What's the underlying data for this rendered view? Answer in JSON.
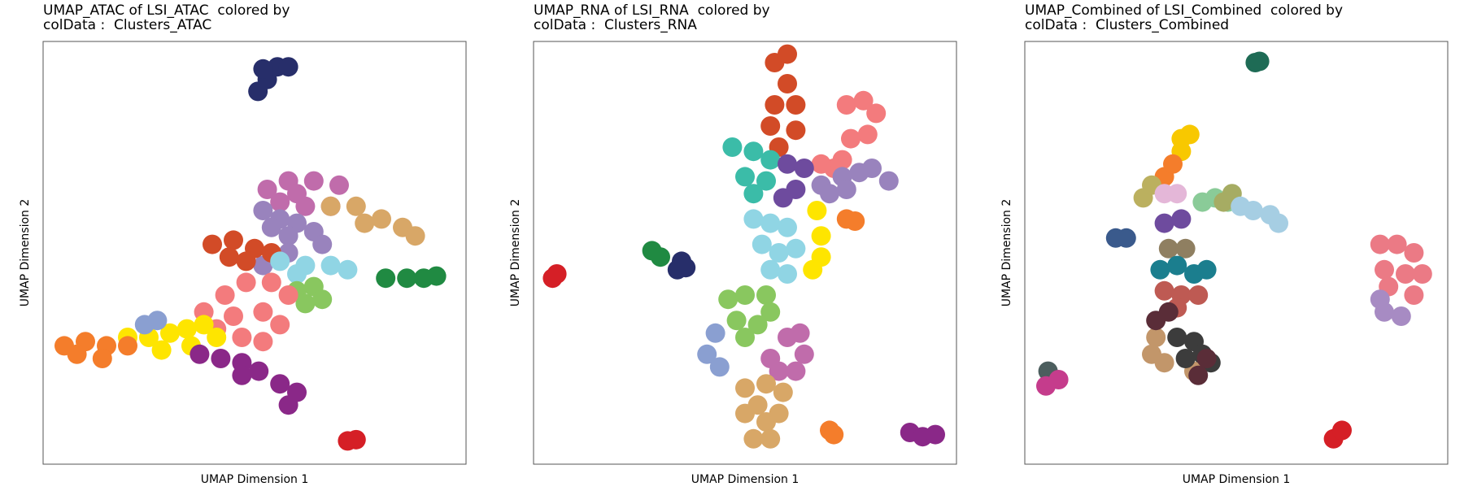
{
  "chart_data": [
    {
      "type": "scatter",
      "title": [
        "UMAP_ATAC of LSI_ATAC  colored by",
        "colData :  Clusters_ATAC"
      ],
      "x_label": "UMAP Dimension 1",
      "y_label": "UMAP Dimension 2",
      "xlim": [
        0,
        100
      ],
      "ylim": [
        0,
        100
      ],
      "series": [
        {
          "color": "#272E6A",
          "x": [
            50.8,
            53,
            55.4,
            58,
            52
          ],
          "y": [
            88.2,
            91,
            94,
            94,
            93.5
          ]
        },
        {
          "color": "#C06CAB",
          "x": [
            53,
            58,
            64,
            70,
            56,
            62,
            68,
            60
          ],
          "y": [
            65,
            67,
            67,
            66,
            62,
            61,
            61,
            64
          ]
        },
        {
          "color": "#D8A767",
          "x": [
            68,
            74,
            80,
            85,
            88,
            76
          ],
          "y": [
            61,
            61,
            58,
            56,
            54,
            57
          ]
        },
        {
          "color": "#9983BD",
          "x": [
            52,
            56,
            60,
            64,
            66,
            58,
            54,
            52,
            58
          ],
          "y": [
            60,
            58,
            57,
            55,
            52,
            54,
            56,
            47,
            50
          ]
        },
        {
          "color": "#D24B27",
          "x": [
            40,
            45,
            50,
            54,
            44,
            48
          ],
          "y": [
            52,
            53,
            51,
            50,
            49,
            48
          ]
        },
        {
          "color": "#90D5E4",
          "x": [
            56,
            62,
            68,
            72,
            60
          ],
          "y": [
            48,
            47,
            47,
            46,
            45
          ]
        },
        {
          "color": "#89C75F",
          "x": [
            60,
            64,
            66,
            62
          ],
          "y": [
            41,
            42,
            39,
            38
          ]
        },
        {
          "color": "#208A42",
          "x": [
            81,
            86,
            90,
            93
          ],
          "y": [
            44,
            44,
            44,
            44.5
          ]
        },
        {
          "color": "#F37B7D",
          "x": [
            38,
            43,
            48,
            54,
            58,
            45,
            52,
            56,
            47,
            52,
            41
          ],
          "y": [
            36,
            40,
            43,
            43,
            40,
            35,
            36,
            33,
            30,
            29,
            32
          ]
        },
        {
          "color": "#FEE500",
          "x": [
            20,
            25,
            30,
            34,
            38,
            28,
            35,
            41
          ],
          "y": [
            30,
            30,
            31,
            32,
            33,
            27,
            28,
            30
          ]
        },
        {
          "color": "#F47D2B",
          "x": [
            5,
            10,
            15,
            20,
            8,
            14
          ],
          "y": [
            28,
            29,
            28,
            28,
            26,
            25
          ]
        },
        {
          "color": "#8A2888",
          "x": [
            37,
            42,
            47,
            51,
            56,
            60,
            58,
            47
          ],
          "y": [
            26,
            25,
            24,
            22,
            19,
            17,
            14,
            21
          ]
        },
        {
          "color": "#8A9FD1",
          "x": [
            24,
            27
          ],
          "y": [
            33,
            34
          ]
        },
        {
          "color": "#D51F26",
          "x": [
            72,
            74
          ],
          "y": [
            5.5,
            5.8
          ]
        }
      ]
    },
    {
      "type": "scatter",
      "title": [
        "UMAP_RNA of LSI_RNA  colored by",
        "colData :  Clusters_RNA"
      ],
      "x_label": "UMAP Dimension 1",
      "y_label": "UMAP Dimension 2",
      "xlim": [
        0,
        100
      ],
      "ylim": [
        0,
        100
      ],
      "series": [
        {
          "color": "#D24B27",
          "x": [
            57,
            60,
            60,
            57,
            62,
            56,
            62,
            58
          ],
          "y": [
            95,
            97,
            90,
            85,
            85,
            80,
            79,
            75
          ]
        },
        {
          "color": "#F37B7D",
          "x": [
            74,
            78,
            81,
            79,
            75,
            73,
            71,
            68
          ],
          "y": [
            85,
            86,
            83,
            78,
            77,
            72,
            70,
            71
          ]
        },
        {
          "color": "#9983BD",
          "x": [
            68,
            73,
            77,
            80,
            74,
            70,
            84
          ],
          "y": [
            66,
            68,
            69,
            70,
            65,
            64,
            67
          ]
        },
        {
          "color": "#3BBCA8",
          "x": [
            47,
            52,
            56,
            50,
            55,
            52
          ],
          "y": [
            75,
            74,
            72,
            68,
            67,
            64
          ]
        },
        {
          "color": "#6E4B9E",
          "x": [
            60,
            64,
            62,
            59
          ],
          "y": [
            71,
            70,
            65,
            63
          ]
        },
        {
          "color": "#90D5E4",
          "x": [
            52,
            56,
            60,
            54,
            58,
            62,
            56,
            60
          ],
          "y": [
            58,
            57,
            56,
            52,
            50,
            51,
            46,
            45
          ]
        },
        {
          "color": "#FEE500",
          "x": [
            67,
            68,
            68,
            66
          ],
          "y": [
            60,
            54,
            49,
            46
          ]
        },
        {
          "color": "#F47D2B",
          "x": [
            74,
            76,
            70,
            71
          ],
          "y": [
            58,
            57.5,
            8,
            7
          ]
        },
        {
          "color": "#89C75F",
          "x": [
            46,
            50,
            55,
            48,
            53,
            56,
            50
          ],
          "y": [
            39,
            40,
            40,
            34,
            33,
            36,
            30
          ]
        },
        {
          "color": "#8A9FD1",
          "x": [
            41,
            43,
            44
          ],
          "y": [
            26,
            31,
            23
          ]
        },
        {
          "color": "#C06CAB",
          "x": [
            60,
            63,
            64,
            62,
            58,
            56
          ],
          "y": [
            30,
            31,
            26,
            22,
            22,
            25
          ]
        },
        {
          "color": "#D8A767",
          "x": [
            50,
            55,
            59,
            50,
            55,
            58,
            52,
            56,
            53
          ],
          "y": [
            18,
            19,
            17,
            12,
            10,
            12,
            6,
            6,
            14
          ]
        },
        {
          "color": "#208A42",
          "x": [
            28,
            30
          ],
          "y": [
            50.5,
            49
          ]
        },
        {
          "color": "#272E6A",
          "x": [
            34,
            36,
            35
          ],
          "y": [
            46,
            46.5,
            48
          ]
        },
        {
          "color": "#D51F26",
          "x": [
            4.5,
            5.5
          ],
          "y": [
            44,
            45
          ]
        },
        {
          "color": "#8A2888",
          "x": [
            89,
            92,
            95
          ],
          "y": [
            7.5,
            6.5,
            7
          ]
        }
      ]
    },
    {
      "type": "scatter",
      "title": [
        "UMAP_Combined of LSI_Combined  colored by",
        "colData :  Clusters_Combined"
      ],
      "x_label": "UMAP Dimension 1",
      "y_label": "UMAP Dimension 2",
      "xlim": [
        0,
        100
      ],
      "ylim": [
        0,
        100
      ],
      "series": [
        {
          "color": "#1E6B55",
          "x": [
            54.5,
            55.5
          ],
          "y": [
            95,
            95.3
          ]
        },
        {
          "color": "#F8C800",
          "x": [
            37,
            39,
            37
          ],
          "y": [
            77,
            78,
            74
          ]
        },
        {
          "color": "#F47D2B",
          "x": [
            33,
            35
          ],
          "y": [
            68,
            71
          ]
        },
        {
          "color": "#BBB05F",
          "x": [
            28,
            30
          ],
          "y": [
            63,
            66
          ]
        },
        {
          "color": "#E4B7D8",
          "x": [
            33,
            36
          ],
          "y": [
            64,
            64
          ]
        },
        {
          "color": "#8ACB98",
          "x": [
            42,
            45,
            48
          ],
          "y": [
            62,
            63,
            62
          ]
        },
        {
          "color": "#A6AC63",
          "x": [
            47,
            49
          ],
          "y": [
            62,
            64
          ]
        },
        {
          "color": "#A6CEE3",
          "x": [
            51,
            54,
            58,
            60
          ],
          "y": [
            61,
            60,
            59,
            57
          ]
        },
        {
          "color": "#6E4B9E",
          "x": [
            33,
            37
          ],
          "y": [
            57,
            58
          ]
        },
        {
          "color": "#8F7F61",
          "x": [
            34,
            38
          ],
          "y": [
            51,
            51
          ]
        },
        {
          "color": "#1B7E8E",
          "x": [
            32,
            36,
            40,
            43
          ],
          "y": [
            46,
            47,
            45,
            46
          ]
        },
        {
          "color": "#BE5A53",
          "x": [
            33,
            37,
            41,
            36
          ],
          "y": [
            41,
            40,
            40,
            37
          ]
        },
        {
          "color": "#C2966A",
          "x": [
            31,
            30,
            33,
            40
          ],
          "y": [
            30,
            26,
            24,
            22
          ]
        },
        {
          "color": "#3C3C3C",
          "x": [
            36,
            40,
            38,
            42,
            44
          ],
          "y": [
            30,
            29,
            25,
            26,
            24
          ]
        },
        {
          "color": "#5A2D38",
          "x": [
            34,
            43,
            41,
            31
          ],
          "y": [
            36,
            25,
            21,
            34
          ]
        },
        {
          "color": "#3A5A8C",
          "x": [
            21.5,
            24
          ],
          "y": [
            53.5,
            53.5
          ]
        },
        {
          "color": "#EB7A85",
          "x": [
            84,
            88,
            92,
            85,
            90,
            94,
            86,
            92
          ],
          "y": [
            52,
            52,
            50,
            46,
            45,
            45,
            42,
            40
          ]
        },
        {
          "color": "#A78BC3",
          "x": [
            85,
            89,
            84
          ],
          "y": [
            36,
            35,
            39
          ]
        },
        {
          "color": "#4C5E5E",
          "x": [
            5.5,
            6.2
          ],
          "y": [
            22,
            20
          ]
        },
        {
          "color": "#C53C8C",
          "x": [
            5,
            8
          ],
          "y": [
            18.5,
            20
          ]
        },
        {
          "color": "#D51F26",
          "x": [
            73,
            75
          ],
          "y": [
            6,
            8
          ]
        }
      ]
    }
  ]
}
